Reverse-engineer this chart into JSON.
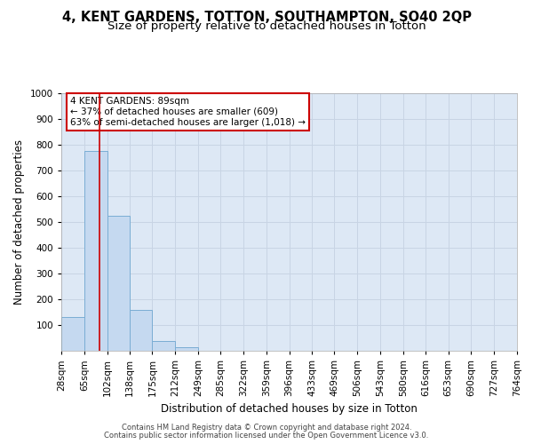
{
  "title_line1": "4, KENT GARDENS, TOTTON, SOUTHAMPTON, SO40 2QP",
  "title_line2": "Size of property relative to detached houses in Totton",
  "xlabel": "Distribution of detached houses by size in Totton",
  "ylabel": "Number of detached properties",
  "bin_edges": [
    28,
    65,
    102,
    138,
    175,
    212,
    249,
    285,
    322,
    359,
    396,
    433,
    469,
    506,
    543,
    580,
    616,
    653,
    690,
    727,
    764
  ],
  "bar_heights": [
    132,
    775,
    525,
    157,
    37,
    13,
    0,
    0,
    0,
    0,
    0,
    0,
    0,
    0,
    0,
    0,
    0,
    0,
    0,
    0
  ],
  "bar_color": "#c5d9f0",
  "bar_edge_color": "#7aadd4",
  "property_size": 89,
  "annotation_title": "4 KENT GARDENS: 89sqm",
  "annotation_line1": "← 37% of detached houses are smaller (609)",
  "annotation_line2": "63% of semi-detached houses are larger (1,018) →",
  "annotation_box_color": "#ffffff",
  "annotation_box_edge_color": "#cc0000",
  "vline_color": "#cc0000",
  "ylim": [
    0,
    1000
  ],
  "yticks": [
    0,
    100,
    200,
    300,
    400,
    500,
    600,
    700,
    800,
    900,
    1000
  ],
  "grid_color": "#c8d4e4",
  "bg_color": "#dde8f5",
  "footer_line1": "Contains HM Land Registry data © Crown copyright and database right 2024.",
  "footer_line2": "Contains public sector information licensed under the Open Government Licence v3.0.",
  "title_fontsize": 10.5,
  "subtitle_fontsize": 9.5,
  "axis_label_fontsize": 8.5,
  "tick_fontsize": 7.5,
  "annotation_fontsize": 7.5
}
